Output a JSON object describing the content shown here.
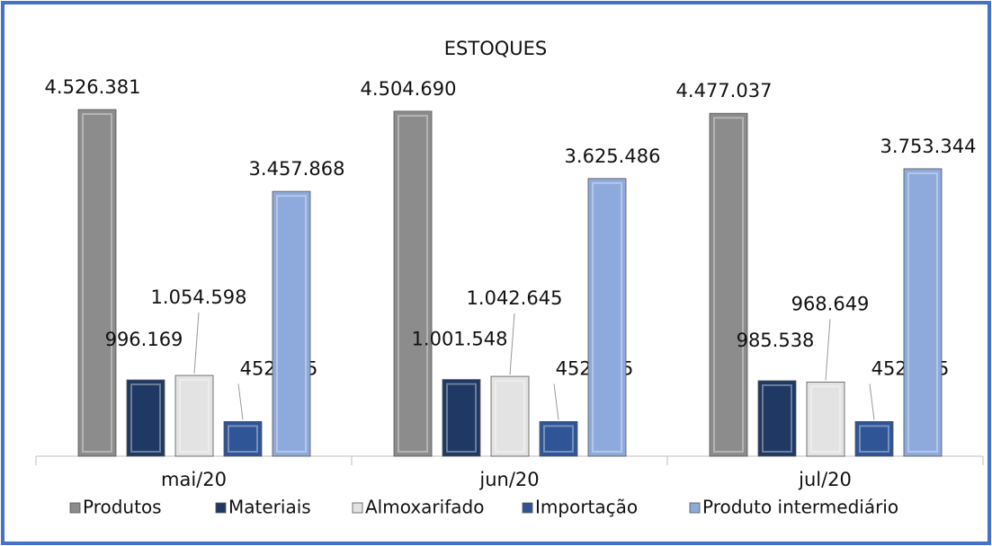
{
  "chart_data": {
    "type": "bar",
    "title": "ESTOQUES",
    "categories": [
      "mai/20",
      "jun/20",
      "jul/20"
    ],
    "series": [
      {
        "name": "Produtos",
        "color": "#8c8c8c",
        "values": [
          4526381,
          4504690,
          4477037
        ],
        "value_labels": [
          "4.526.381",
          "4.504.690",
          "4.477.037"
        ]
      },
      {
        "name": "Materiais",
        "color": "#1f3864",
        "values": [
          996169,
          1001548,
          985538
        ],
        "value_labels": [
          "996.169",
          "1.001.548",
          "985.538"
        ]
      },
      {
        "name": "Almoxarifado",
        "color": "#e3e3e3",
        "values": [
          1054598,
          1042645,
          968649
        ],
        "value_labels": [
          "1.054.598",
          "1.042.645",
          "968.649"
        ]
      },
      {
        "name": "Importação",
        "color": "#2f5597",
        "values": [
          452805,
          452805,
          452805
        ],
        "value_labels": [
          "452.805",
          "452.805",
          "452.805"
        ]
      },
      {
        "name": "Produto intermediário",
        "color": "#8eaadc",
        "values": [
          3457868,
          3625486,
          3753344
        ],
        "value_labels": [
          "3.457.868",
          "3.625.486",
          "3.753.344"
        ]
      }
    ],
    "legend": "bottom"
  }
}
